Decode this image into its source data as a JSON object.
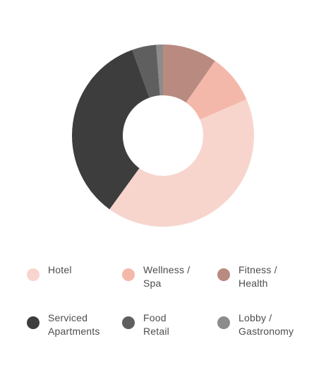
{
  "chart_data": {
    "type": "pie",
    "donut": true,
    "start_angle_deg": 0,
    "slices": [
      {
        "label": "Fitness / Health",
        "value": 9.7,
        "color": "#b98a80"
      },
      {
        "label": "Wellness / Spa",
        "value": 8.8,
        "color": "#f4b8aa"
      },
      {
        "label": "Hotel",
        "value": 41.5,
        "color": "#f7d5cd"
      },
      {
        "label": "Serviced Apartments",
        "value": 34.5,
        "color": "#3d3d3d"
      },
      {
        "label": "Food Retail",
        "value": 4.3,
        "color": "#5f5f5f"
      },
      {
        "label": "Lobby / Gastronomy",
        "value": 1.2,
        "color": "#8c8c8c"
      }
    ],
    "legend_position": "bottom"
  },
  "legend": [
    {
      "text": "Hotel",
      "color": "#f7d5cd"
    },
    {
      "text": "Wellness /\nSpa",
      "color": "#f4b8aa"
    },
    {
      "text": "Fitness /\nHealth",
      "color": "#b98a80"
    },
    {
      "text": "Serviced\nApartments",
      "color": "#3d3d3d"
    },
    {
      "text": "Food\nRetail",
      "color": "#5f5f5f"
    },
    {
      "text": "Lobby /\nGastronomy",
      "color": "#8c8c8c"
    }
  ]
}
